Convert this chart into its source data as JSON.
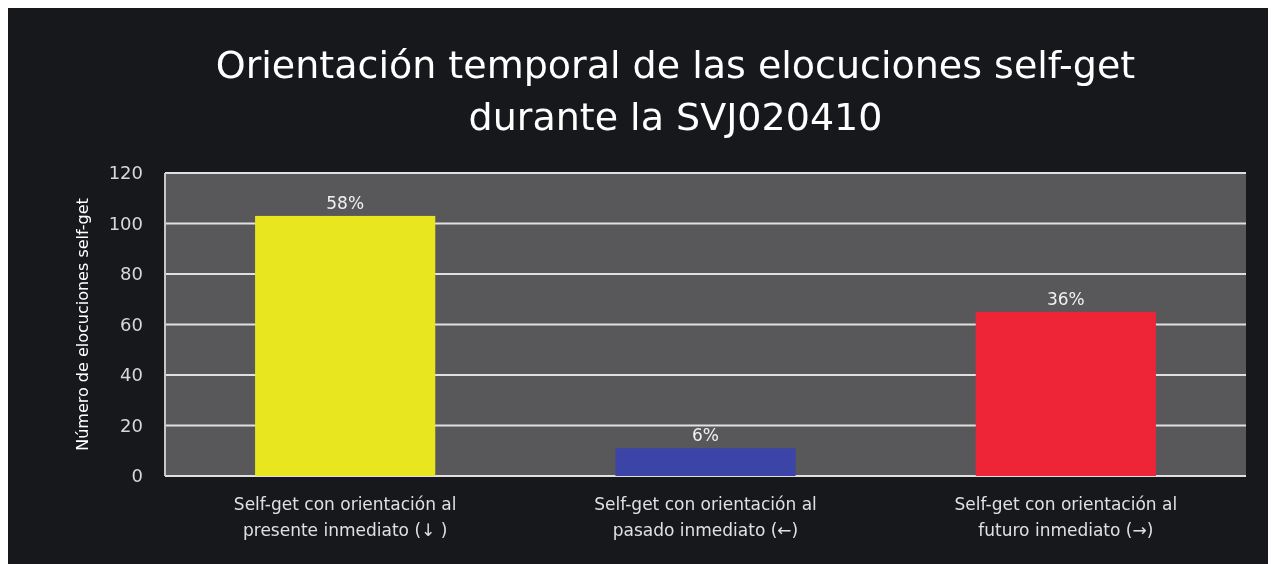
{
  "chart_data": {
    "type": "bar",
    "title": "Orientación temporal de las elocuciones self-get durante la SVJ020410",
    "ylabel": "Número de elocuciones self-get",
    "categories": [
      "Self-get con orientación al presente inmediato (↓ )",
      "Self-get con orientación al pasado inmediato (←)",
      "Self-get con orientación al futuro inmediato (→)"
    ],
    "values": [
      103,
      11,
      65
    ],
    "colors": [
      "#e8e61e",
      "#3d44a8",
      "#ee2536"
    ],
    "annotations": [
      {
        "text": "58%",
        "x": "Self-get con orientación al presente inmediato (↓ )",
        "y": 103
      },
      {
        "text": "6%",
        "x": "Self-get con orientación al pasado inmediato (←)",
        "y": 11
      },
      {
        "text": "36%",
        "x": "Self-get con orientación al futuro inmediato (→)",
        "y": 65
      }
    ],
    "ylim": [
      0,
      120
    ],
    "yticks": [
      0,
      20,
      40,
      60,
      80,
      100,
      120
    ],
    "grid": "y"
  }
}
